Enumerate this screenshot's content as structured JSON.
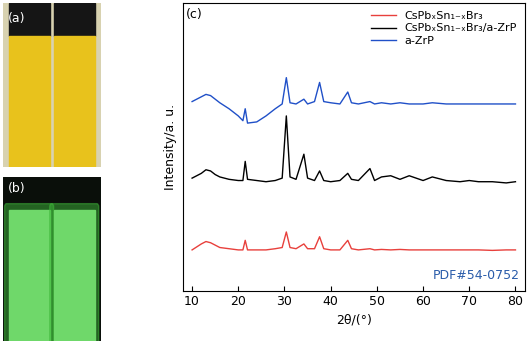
{
  "chart_data": {
    "type": "line",
    "panel_label": "(c)",
    "x_label": "2θ/(°)",
    "y_label": "Intensity/a. u.",
    "xlim": [
      8,
      82
    ],
    "xticks": [
      10,
      20,
      30,
      40,
      50,
      60,
      70,
      80
    ],
    "ylim": [
      0,
      12
    ],
    "yticks": [],
    "tick_labels": "x",
    "legend": "upper right",
    "annotation": {
      "text": "PDF#54-0752",
      "color": "#2a5caa"
    },
    "x": [
      10,
      12,
      13,
      14,
      15,
      16,
      18,
      20,
      21,
      21.5,
      22,
      24,
      26,
      28,
      29.5,
      30.4,
      31.2,
      32.5,
      34.2,
      35,
      36.5,
      37.6,
      38.5,
      40,
      42,
      43.7,
      44.5,
      46,
      48.5,
      49.5,
      51,
      53,
      55,
      57,
      60,
      62,
      65,
      68,
      70,
      72,
      75,
      78,
      80
    ],
    "series": [
      {
        "name": "CsPbₓSn₁₋ₓBr₃",
        "color": "#e8403c",
        "values": [
          1.7,
          1.95,
          2.05,
          2.0,
          1.9,
          1.8,
          1.75,
          1.7,
          1.7,
          2.1,
          1.7,
          1.7,
          1.7,
          1.75,
          1.8,
          2.45,
          1.8,
          1.75,
          1.95,
          1.75,
          1.75,
          2.25,
          1.75,
          1.7,
          1.7,
          2.1,
          1.75,
          1.7,
          1.75,
          1.7,
          1.72,
          1.7,
          1.72,
          1.7,
          1.7,
          1.7,
          1.7,
          1.7,
          1.7,
          1.7,
          1.68,
          1.7,
          1.7
        ]
      },
      {
        "name": "CsPbₓSn₁₋ₓBr₃/a-ZrP",
        "color": "#000000",
        "values": [
          4.7,
          4.9,
          5.05,
          5.0,
          4.85,
          4.75,
          4.65,
          4.6,
          4.6,
          5.4,
          4.65,
          4.6,
          4.55,
          4.6,
          4.7,
          7.3,
          4.75,
          4.65,
          5.7,
          4.7,
          4.6,
          5.0,
          4.6,
          4.55,
          4.6,
          4.9,
          4.65,
          4.6,
          5.1,
          4.6,
          4.75,
          4.8,
          4.65,
          4.8,
          4.6,
          4.75,
          4.6,
          4.55,
          4.6,
          4.55,
          4.55,
          4.5,
          4.55
        ]
      },
      {
        "name": "a-ZrP",
        "color": "#2050c8",
        "values": [
          7.9,
          8.1,
          8.2,
          8.15,
          8.0,
          7.85,
          7.6,
          7.3,
          7.1,
          7.6,
          7.0,
          7.05,
          7.3,
          7.6,
          7.8,
          8.9,
          7.85,
          7.8,
          8.0,
          7.8,
          7.9,
          8.7,
          7.9,
          7.85,
          7.8,
          8.3,
          7.85,
          7.8,
          7.9,
          7.8,
          7.85,
          7.8,
          7.85,
          7.8,
          7.8,
          7.85,
          7.8,
          7.8,
          7.8,
          7.8,
          7.8,
          7.8,
          7.8
        ]
      }
    ]
  },
  "images": [
    {
      "label": "(a)"
    },
    {
      "label": "(b)"
    }
  ]
}
